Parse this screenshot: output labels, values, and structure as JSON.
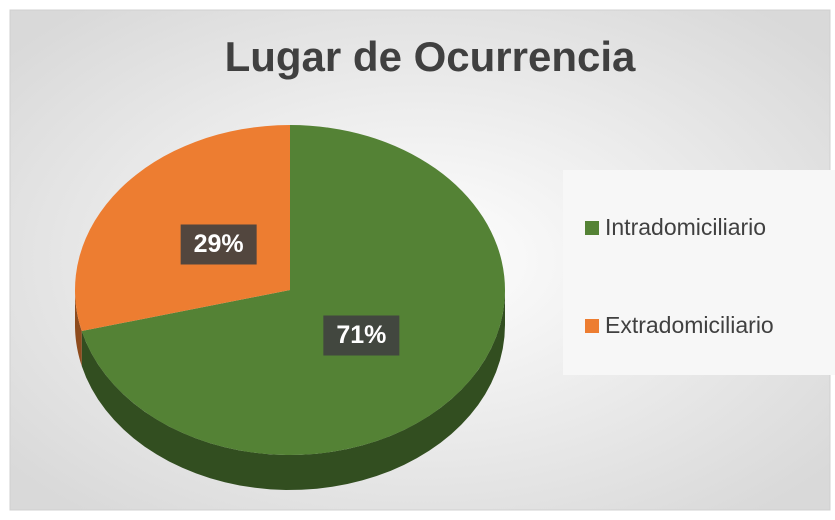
{
  "chart_data": {
    "type": "pie",
    "title": "Lugar de Ocurrencia",
    "categories": [
      "Intradomiciliario",
      "Extradomiciliario"
    ],
    "values": [
      71,
      29
    ],
    "value_labels": [
      "71%",
      "29%"
    ],
    "colors": [
      "#548235",
      "#ed7d31"
    ],
    "legend": "right"
  }
}
